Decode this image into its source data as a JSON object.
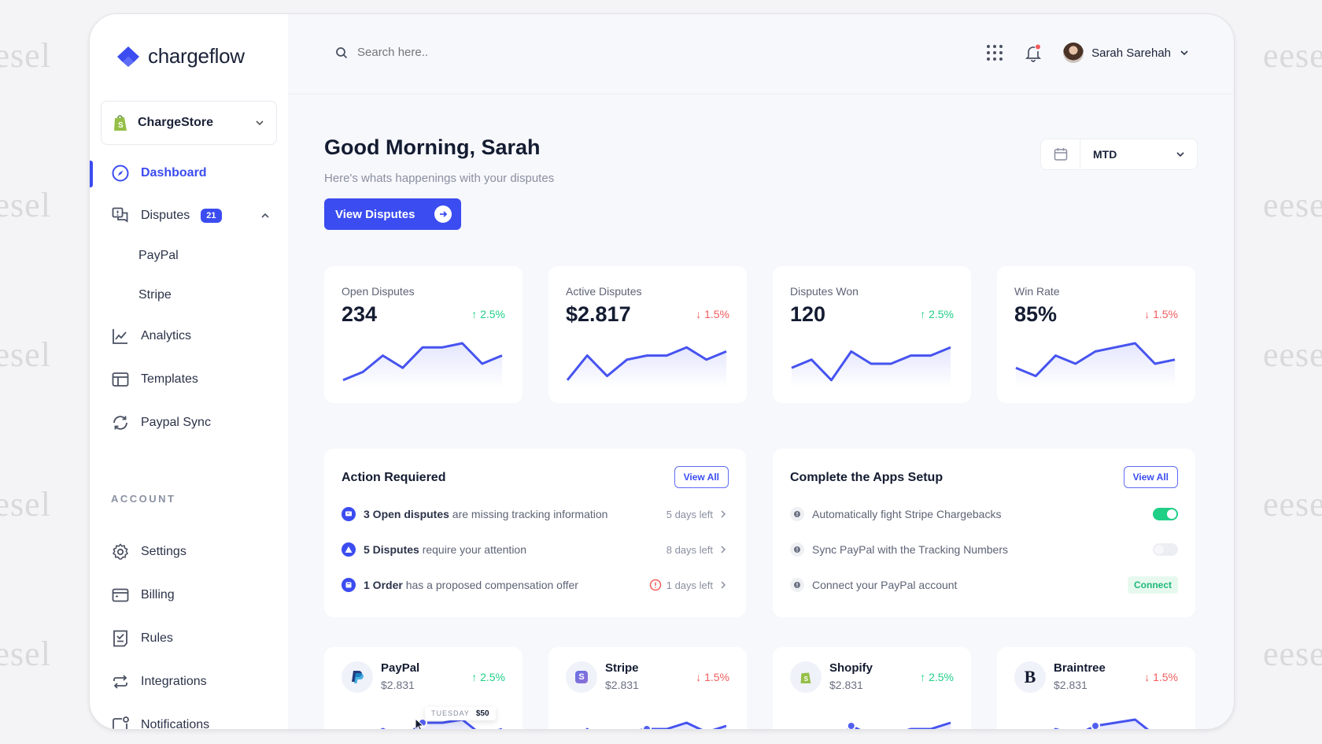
{
  "watermark": "eesel",
  "brand": {
    "name": "chargeflow",
    "accent": "#3b4cf0"
  },
  "store": {
    "name": "ChargeStore"
  },
  "sidebar": {
    "items": [
      {
        "label": "Dashboard",
        "active": true
      },
      {
        "label": "Disputes",
        "badge": "21",
        "expanded": true
      },
      {
        "label": "PayPal",
        "sub": true
      },
      {
        "label": "Stripe",
        "sub": true
      },
      {
        "label": "Analytics"
      },
      {
        "label": "Templates"
      },
      {
        "label": "Paypal Sync"
      }
    ],
    "section_label": "ACCOUNT",
    "account_items": [
      {
        "label": "Settings"
      },
      {
        "label": "Billing"
      },
      {
        "label": "Rules"
      },
      {
        "label": "Integrations"
      },
      {
        "label": "Notifications"
      }
    ]
  },
  "topbar": {
    "search_placeholder": "Search here..",
    "user_name": "Sarah Sarehah"
  },
  "header": {
    "greeting": "Good Morning, Sarah",
    "subtitle": "Here's whats happenings with your disputes",
    "cta_label": "View Disputes",
    "date_range": "MTD"
  },
  "stats": [
    {
      "label": "Open Disputes",
      "value": "234",
      "delta": "2.5%",
      "direction": "up",
      "points": [
        9,
        7,
        3,
        6,
        1,
        1,
        0,
        5,
        3
      ]
    },
    {
      "label": "Active Disputes",
      "value": "$2.817",
      "delta": "1.5%",
      "direction": "down",
      "points": [
        9,
        3,
        8,
        4,
        3,
        3,
        1,
        4,
        2
      ]
    },
    {
      "label": "Disputes Won",
      "value": "120",
      "delta": "2.5%",
      "direction": "up",
      "points": [
        6,
        4,
        9,
        2,
        5,
        5,
        3,
        3,
        1
      ]
    },
    {
      "label": "Win Rate",
      "value": "85%",
      "delta": "1.5%",
      "direction": "down",
      "points": [
        6,
        8,
        3,
        5,
        2,
        1,
        0,
        5,
        4
      ]
    }
  ],
  "action_required": {
    "title": "Action Requiered",
    "view_all": "View All",
    "items": [
      {
        "bold": "3 Open disputes",
        "text": " are missing tracking information",
        "meta": "5 days left",
        "icon": "message-icon",
        "warn": false
      },
      {
        "bold": "5 Disputes",
        "text": " require your attention",
        "meta": "8 days left",
        "icon": "warning-icon",
        "warn": false
      },
      {
        "bold": "1 Order",
        "text": " has a proposed compensation offer",
        "meta": "1 days left",
        "icon": "order-icon",
        "warn": true
      }
    ]
  },
  "apps_setup": {
    "title": "Complete the Apps Setup",
    "view_all": "View All",
    "items": [
      {
        "text": "Automatically fight Stripe Chargebacks",
        "control": "toggle-on"
      },
      {
        "text": "Sync PayPal with the Tracking Numbers",
        "control": "toggle-off"
      },
      {
        "text": "Connect your PayPal account",
        "control": "connect",
        "action_label": "Connect"
      }
    ]
  },
  "gateways": [
    {
      "name": "PayPal",
      "value": "$2.831",
      "delta": "2.5%",
      "direction": "up",
      "tooltip_day": "TUESDAY",
      "tooltip_value": "$50"
    },
    {
      "name": "Stripe",
      "value": "$2.831",
      "delta": "1.5%",
      "direction": "down"
    },
    {
      "name": "Shopify",
      "value": "$2.831",
      "delta": "2.5%",
      "direction": "up"
    },
    {
      "name": "Braintree",
      "value": "$2.831",
      "delta": "1.5%",
      "direction": "down"
    }
  ],
  "colors": {
    "up": "#1fcf86",
    "down": "#f25c5c",
    "accent": "#3b4cf0"
  }
}
